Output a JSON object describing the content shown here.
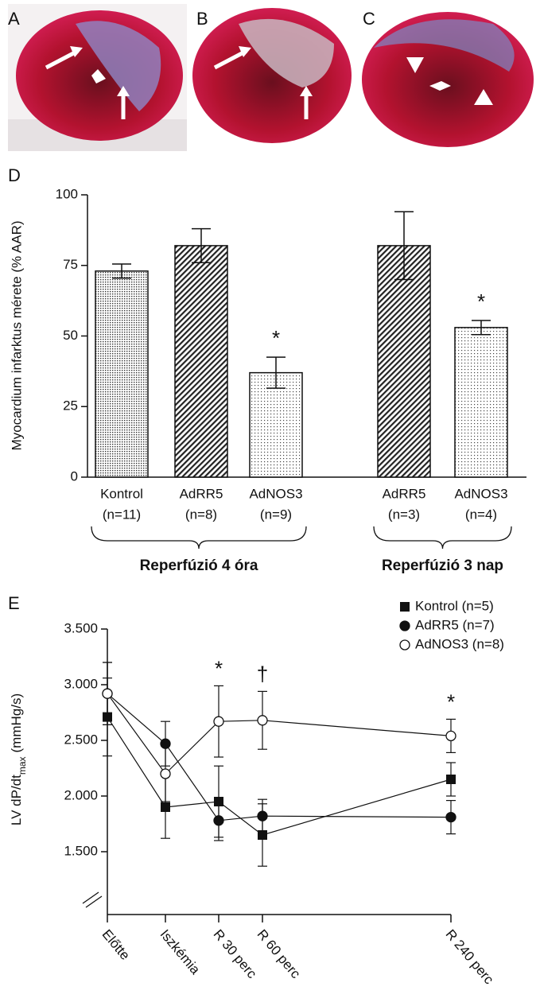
{
  "panel_labels": [
    "A",
    "B",
    "C",
    "D",
    "E"
  ],
  "chart_data": [
    {
      "type": "bar",
      "y_label": "Myocardium infarktus mérete (% AAR)",
      "ylim": [
        0,
        100
      ],
      "yticks": [
        0,
        25,
        50,
        75,
        100
      ],
      "groups": [
        {
          "label": "Reperfúzió 4 óra",
          "categories": [
            "Kontrol",
            "AdRR5",
            "AdNOS3"
          ],
          "n_labels": [
            "(n=11)",
            "(n=8)",
            "(n=9)"
          ],
          "values": [
            73,
            82,
            37
          ],
          "errors": [
            2.5,
            6,
            5.5
          ],
          "patterns": [
            "dense-dots",
            "hatch",
            "sparse-dots"
          ],
          "significance": [
            null,
            null,
            "*"
          ]
        },
        {
          "label": "Reperfúzió 3 nap",
          "categories": [
            "AdRR5",
            "AdNOS3"
          ],
          "n_labels": [
            "(n=3)",
            "(n=4)"
          ],
          "values": [
            82,
            53
          ],
          "errors": [
            12,
            2.5
          ],
          "patterns": [
            "hatch",
            "sparse-dots"
          ],
          "significance": [
            null,
            "*"
          ]
        }
      ]
    },
    {
      "type": "line",
      "y_label": "LV dP/dt",
      "y_label_sub": "max",
      "y_label_unit": "(mmHg/s)",
      "categories": [
        "Előtte",
        "Iszkémia",
        "R 30 perc",
        "R 60 perc",
        "R 240 perc"
      ],
      "ylim": [
        1000,
        3500
      ],
      "yticks": [
        {
          "value": 1500,
          "label": "1.500"
        },
        {
          "value": 2000,
          "label": "2.000"
        },
        {
          "value": 2500,
          "label": "2.500"
        },
        {
          "value": 3000,
          "label": "3.000"
        },
        {
          "value": 3500,
          "label": "3.500"
        }
      ],
      "annotations": [
        null,
        null,
        "*",
        "†",
        "*"
      ],
      "series": [
        {
          "name": "Kontrol (n=5)",
          "marker": "square",
          "color": "#111111",
          "values": [
            2710,
            1900,
            1950,
            1650,
            2150
          ],
          "errors": [
            350,
            280,
            320,
            280,
            150
          ]
        },
        {
          "name": "AdRR5 (n=7)",
          "marker": "filled-circle",
          "color": "#111111",
          "values": [
            2920,
            2470,
            1780,
            1820,
            1810
          ],
          "errors": [
            280,
            200,
            180,
            150,
            150
          ]
        },
        {
          "name": "AdNOS3 (n=8)",
          "marker": "open-circle",
          "color": "#111111",
          "values": [
            2920,
            2200,
            2670,
            2680,
            2540
          ],
          "errors": [
            280,
            250,
            320,
            260,
            150
          ]
        }
      ]
    }
  ]
}
